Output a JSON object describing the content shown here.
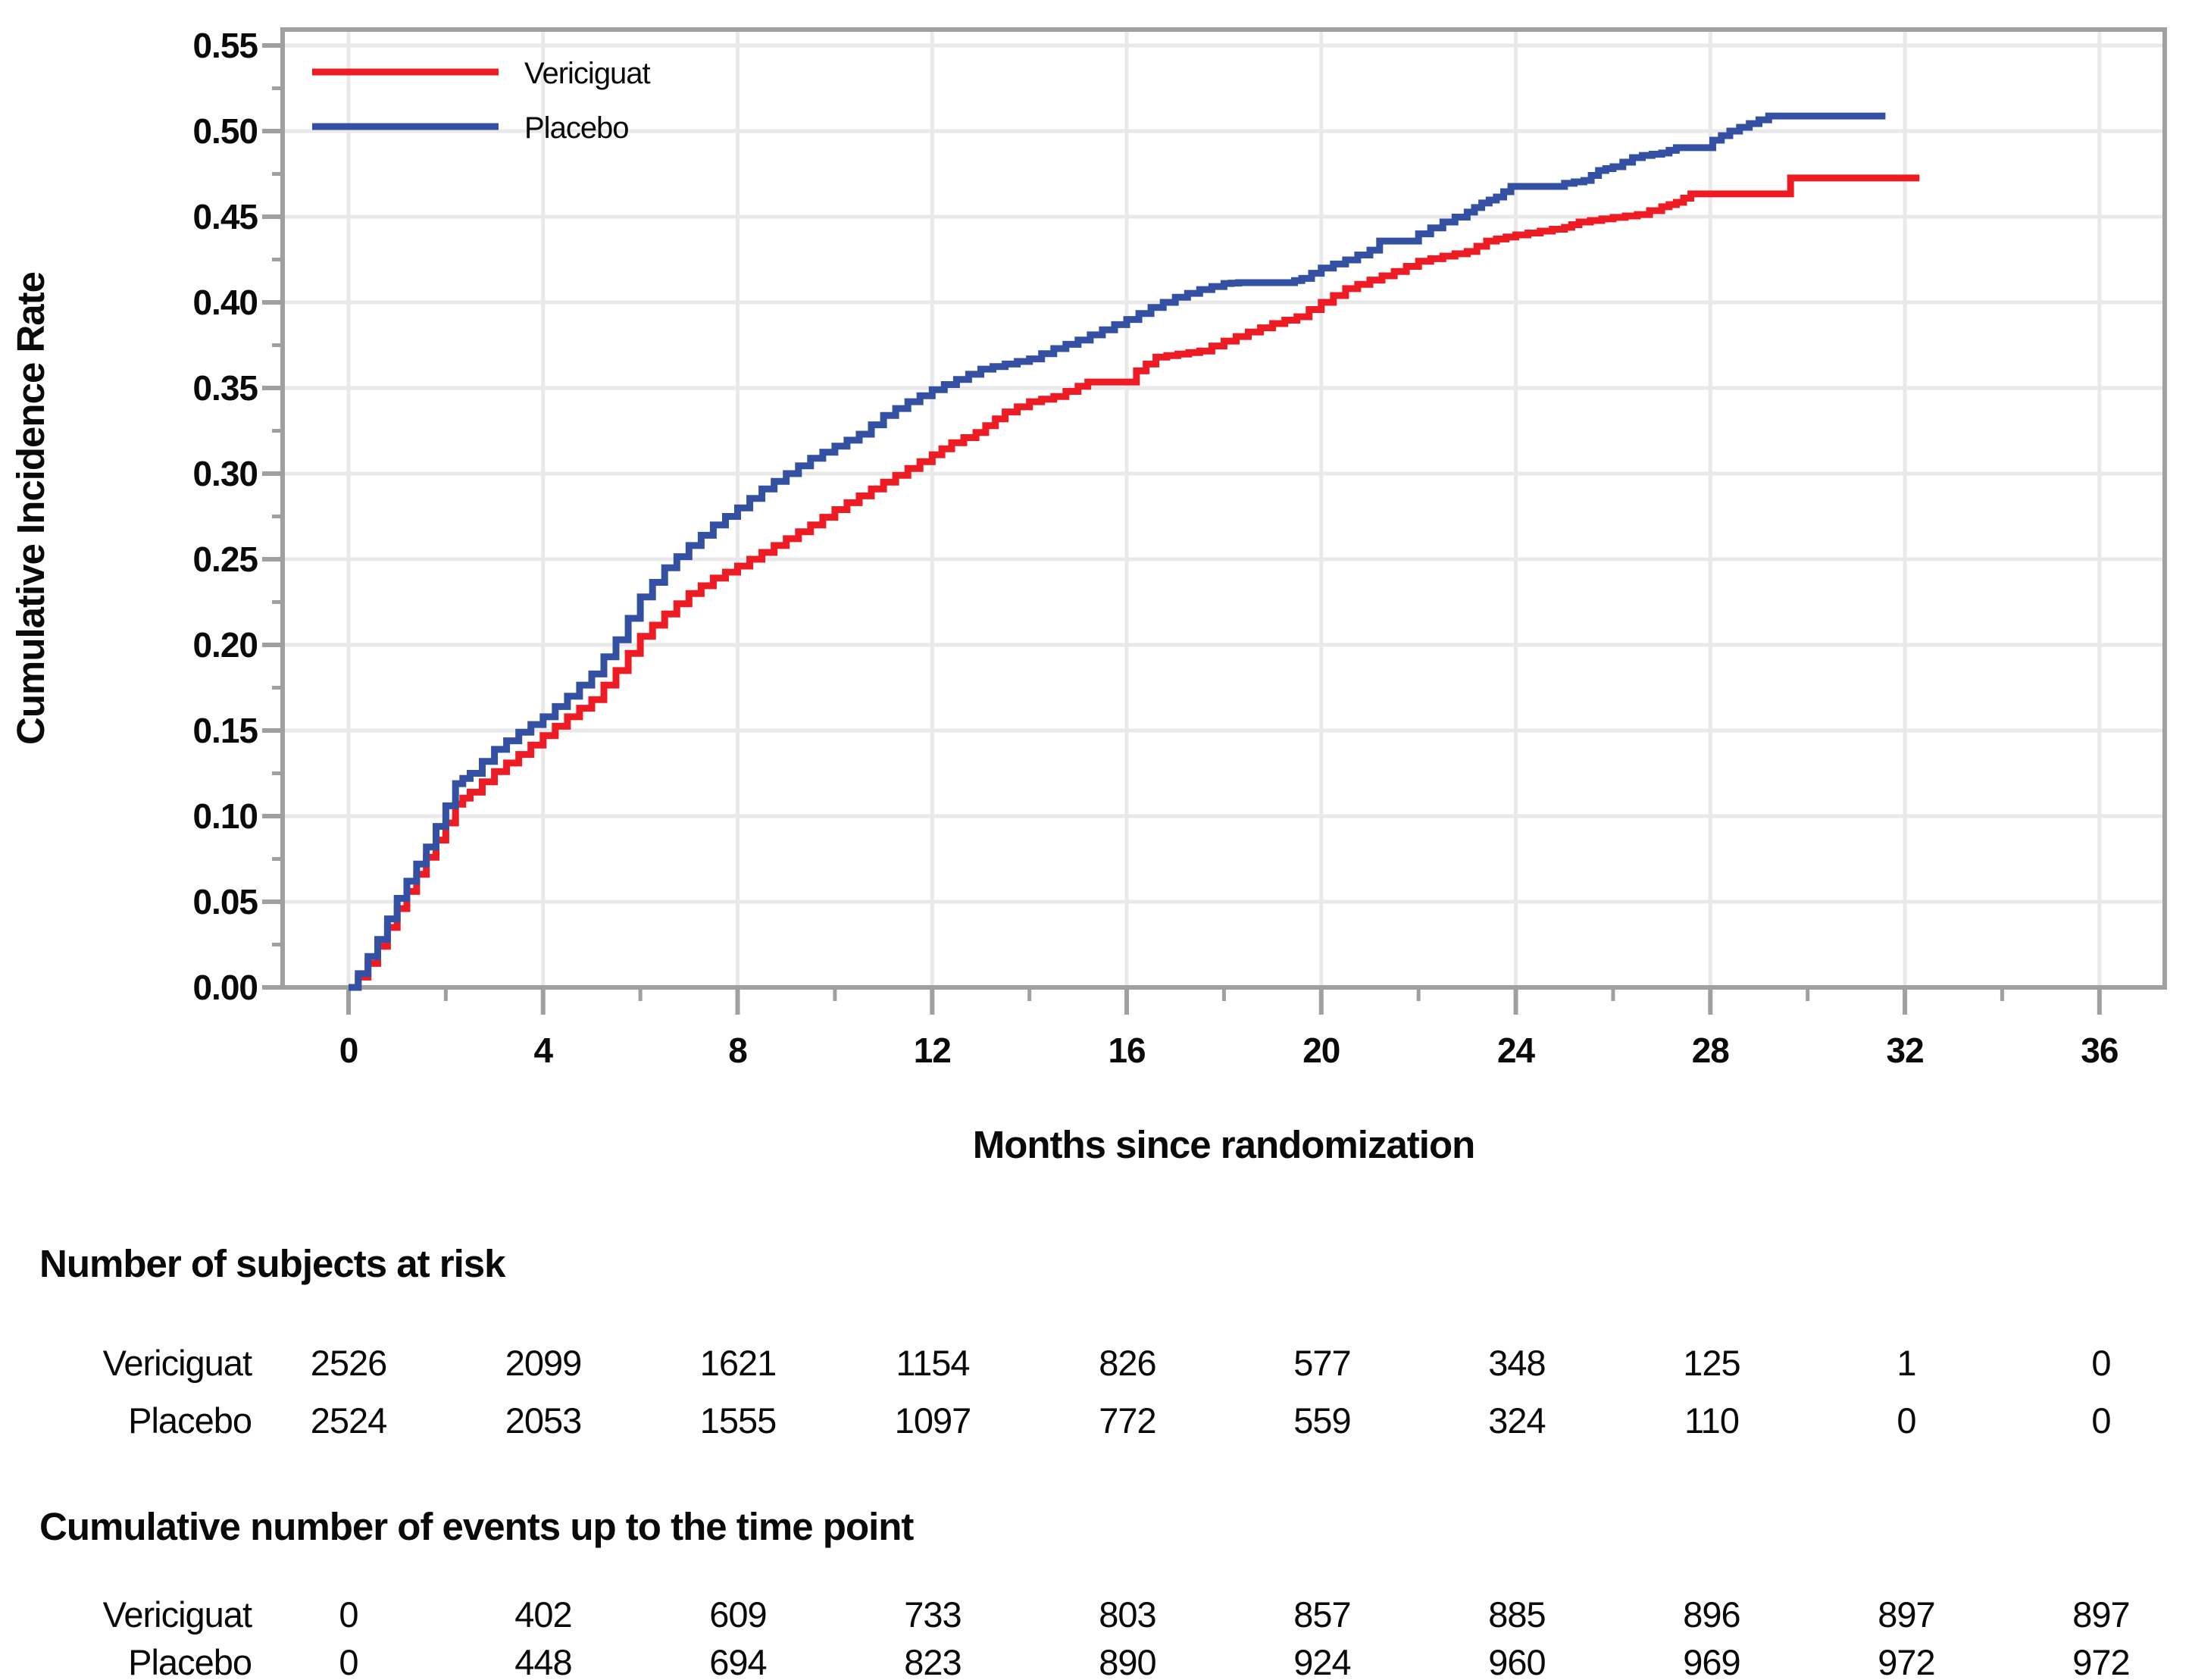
{
  "chart_data": {
    "type": "line",
    "step": true,
    "title": "",
    "xlabel": "Months since randomization",
    "ylabel": "Cumulative Incidence Rate",
    "xlim": [
      0,
      36
    ],
    "ylim": [
      0,
      0.55
    ],
    "x_ticks": [
      0,
      4,
      8,
      12,
      16,
      20,
      24,
      28,
      32,
      36
    ],
    "x_tick_labels": [
      "0",
      "4",
      "8",
      "12",
      "16",
      "20",
      "24",
      "28",
      "32",
      "36"
    ],
    "x_minor_tick_step": 2,
    "y_ticks": [
      0.0,
      0.05,
      0.1,
      0.15,
      0.2,
      0.25,
      0.3,
      0.35,
      0.4,
      0.45,
      0.5,
      0.55
    ],
    "y_tick_labels": [
      "0.00",
      "0.05",
      "0.10",
      "0.15",
      "0.20",
      "0.25",
      "0.30",
      "0.35",
      "0.40",
      "0.45",
      "0.50",
      "0.55"
    ],
    "y_minor_tick_step": 0.025,
    "grid": "major",
    "legend_position": "top-left",
    "series": [
      {
        "name": "Vericiguat",
        "color": "#ed1c24",
        "points": [
          [
            0,
            0
          ],
          [
            0.2,
            0.006
          ],
          [
            0.4,
            0.014
          ],
          [
            0.6,
            0.024
          ],
          [
            0.8,
            0.035
          ],
          [
            1,
            0.046
          ],
          [
            1.2,
            0.056
          ],
          [
            1.4,
            0.066
          ],
          [
            1.6,
            0.076
          ],
          [
            1.8,
            0.086
          ],
          [
            2,
            0.096
          ],
          [
            2.2,
            0.107
          ],
          [
            2.5,
            0.114
          ],
          [
            3,
            0.126
          ],
          [
            3.5,
            0.136
          ],
          [
            4,
            0.147
          ],
          [
            4.5,
            0.158
          ],
          [
            5,
            0.168
          ],
          [
            5.5,
            0.185
          ],
          [
            6,
            0.205
          ],
          [
            6.5,
            0.218
          ],
          [
            7,
            0.23
          ],
          [
            7.5,
            0.239
          ],
          [
            8,
            0.246
          ],
          [
            8.5,
            0.254
          ],
          [
            9,
            0.262
          ],
          [
            9.5,
            0.27
          ],
          [
            10,
            0.279
          ],
          [
            10.5,
            0.287
          ],
          [
            11,
            0.295
          ],
          [
            11.5,
            0.303
          ],
          [
            12,
            0.311
          ],
          [
            12.4,
            0.318
          ],
          [
            12.9,
            0.324
          ],
          [
            13.5,
            0.336
          ],
          [
            14,
            0.342
          ],
          [
            14.5,
            0.345
          ],
          [
            15,
            0.351
          ],
          [
            15.2,
            0.3535
          ],
          [
            16,
            0.3535
          ],
          [
            16.2,
            0.36
          ],
          [
            16.6,
            0.368
          ],
          [
            17.5,
            0.3716
          ],
          [
            18,
            0.3774
          ],
          [
            18.5,
            0.3827
          ],
          [
            19,
            0.3876
          ],
          [
            19.5,
            0.3916
          ],
          [
            20,
            0.4
          ],
          [
            20.5,
            0.408
          ],
          [
            21,
            0.413
          ],
          [
            21.5,
            0.418
          ],
          [
            22,
            0.424
          ],
          [
            22.5,
            0.427
          ],
          [
            23,
            0.4297
          ],
          [
            23.4,
            0.4358
          ],
          [
            24,
            0.4394
          ],
          [
            24.5,
            0.4416
          ],
          [
            25,
            0.4438
          ],
          [
            25.3,
            0.4469
          ],
          [
            26,
            0.4496
          ],
          [
            26.5,
            0.4513
          ],
          [
            27,
            0.4558
          ],
          [
            27.3,
            0.4584
          ],
          [
            27.6,
            0.4633
          ],
          [
            29.6,
            0.4633
          ],
          [
            29.65,
            0.4726
          ],
          [
            32.3,
            0.4726
          ]
        ]
      },
      {
        "name": "Placebo",
        "color": "#3350a2",
        "points": [
          [
            0,
            0
          ],
          [
            0.2,
            0.008
          ],
          [
            0.4,
            0.018
          ],
          [
            0.6,
            0.028
          ],
          [
            0.8,
            0.04
          ],
          [
            1,
            0.052
          ],
          [
            1.2,
            0.062
          ],
          [
            1.4,
            0.072
          ],
          [
            1.6,
            0.082
          ],
          [
            1.8,
            0.094
          ],
          [
            2,
            0.106
          ],
          [
            2.2,
            0.119
          ],
          [
            2.5,
            0.125
          ],
          [
            3,
            0.139
          ],
          [
            3.5,
            0.149
          ],
          [
            4,
            0.158
          ],
          [
            4.5,
            0.17
          ],
          [
            5,
            0.183
          ],
          [
            5.5,
            0.203
          ],
          [
            6,
            0.228
          ],
          [
            6.5,
            0.245
          ],
          [
            7,
            0.258
          ],
          [
            7.5,
            0.27
          ],
          [
            8,
            0.28
          ],
          [
            8.5,
            0.291
          ],
          [
            9,
            0.3
          ],
          [
            9.5,
            0.309
          ],
          [
            10,
            0.316
          ],
          [
            10.5,
            0.323
          ],
          [
            11,
            0.334
          ],
          [
            11.5,
            0.342
          ],
          [
            12,
            0.349
          ],
          [
            12.5,
            0.355
          ],
          [
            13,
            0.361
          ],
          [
            13.5,
            0.364
          ],
          [
            14,
            0.367
          ],
          [
            14.5,
            0.373
          ],
          [
            15,
            0.378
          ],
          [
            15.5,
            0.384
          ],
          [
            16,
            0.39
          ],
          [
            16.5,
            0.397
          ],
          [
            17,
            0.403
          ],
          [
            17.5,
            0.4075
          ],
          [
            18,
            0.411
          ],
          [
            18.3,
            0.4115
          ],
          [
            19.3,
            0.4115
          ],
          [
            19.6,
            0.414
          ],
          [
            20,
            0.42
          ],
          [
            20.5,
            0.4248
          ],
          [
            21,
            0.4305
          ],
          [
            21.2,
            0.4358
          ],
          [
            21.9,
            0.4358
          ],
          [
            22,
            0.44
          ],
          [
            22.5,
            0.4469
          ],
          [
            23,
            0.4527
          ],
          [
            23.3,
            0.458
          ],
          [
            23.6,
            0.4615
          ],
          [
            23.9,
            0.4677
          ],
          [
            24.9,
            0.4677
          ],
          [
            25,
            0.4695
          ],
          [
            25.4,
            0.4712
          ],
          [
            25.7,
            0.477
          ],
          [
            26,
            0.4792
          ],
          [
            26.4,
            0.4845
          ],
          [
            26.6,
            0.4858
          ],
          [
            27,
            0.4872
          ],
          [
            27.3,
            0.4903
          ],
          [
            28,
            0.4903
          ],
          [
            28.05,
            0.4947
          ],
          [
            28.4,
            0.5
          ],
          [
            29.2,
            0.5088
          ],
          [
            31.6,
            0.5088
          ]
        ]
      }
    ]
  },
  "legend": {
    "items": [
      {
        "label": "Vericiguat",
        "color": "#ed1c24"
      },
      {
        "label": "Placebo",
        "color": "#3350a2"
      }
    ]
  },
  "tables": {
    "at_risk": {
      "title": "Number of subjects at risk",
      "columns": [
        0,
        4,
        8,
        12,
        16,
        20,
        24,
        28,
        32,
        36
      ],
      "rows": [
        {
          "label": "Vericiguat",
          "values": [
            "2526",
            "2099",
            "1621",
            "1154",
            "826",
            "577",
            "348",
            "125",
            "1",
            "0"
          ]
        },
        {
          "label": "Placebo",
          "values": [
            "2524",
            "2053",
            "1555",
            "1097",
            "772",
            "559",
            "324",
            "110",
            "0",
            "0"
          ]
        }
      ]
    },
    "events": {
      "title": "Cumulative number of events up to the time point",
      "columns": [
        0,
        4,
        8,
        12,
        16,
        20,
        24,
        28,
        32,
        36
      ],
      "rows": [
        {
          "label": "Vericiguat",
          "values": [
            "0",
            "402",
            "609",
            "733",
            "803",
            "857",
            "885",
            "896",
            "897",
            "897"
          ]
        },
        {
          "label": "Placebo",
          "values": [
            "0",
            "448",
            "694",
            "823",
            "890",
            "924",
            "960",
            "969",
            "972",
            "972"
          ]
        }
      ]
    }
  },
  "colors": {
    "grid": "#e9e9e9",
    "frame": "#a0a0a0",
    "text": "#0a0a0a"
  }
}
